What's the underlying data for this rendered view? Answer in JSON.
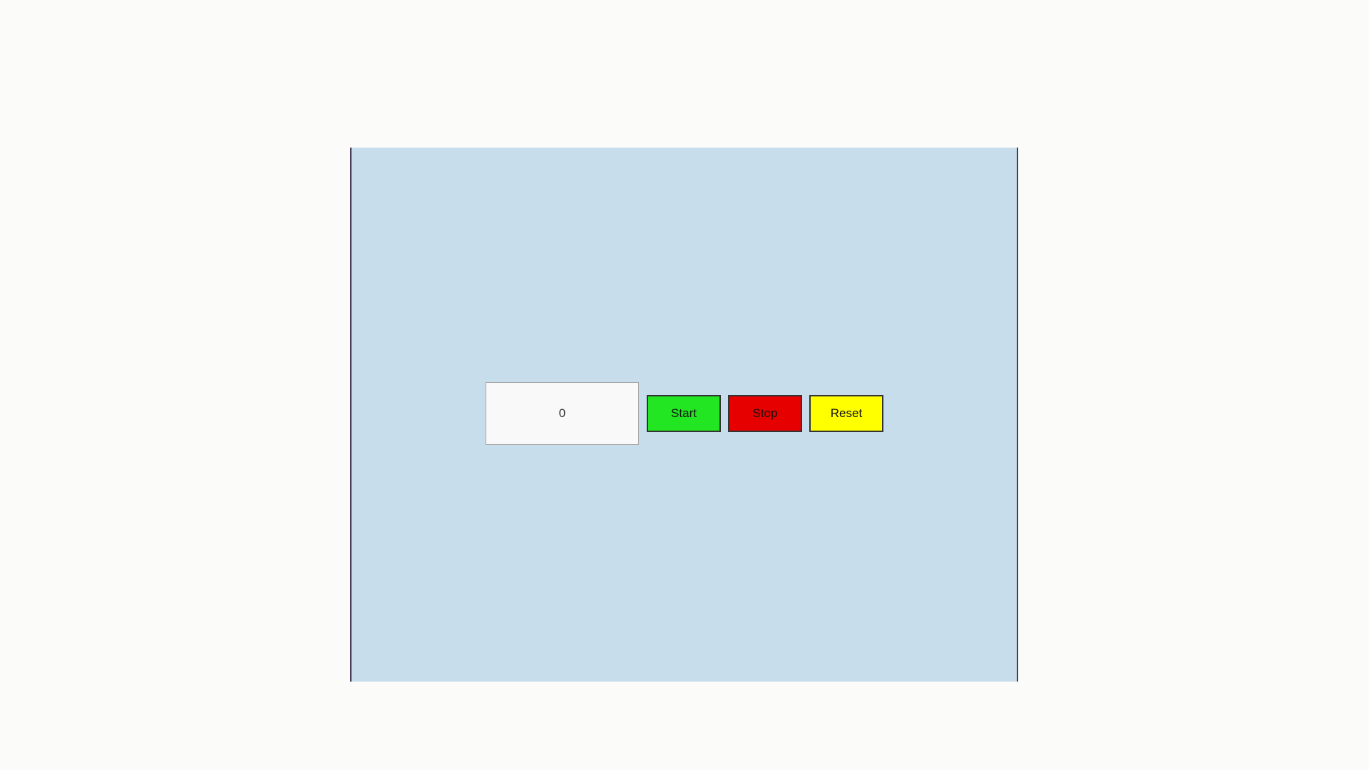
{
  "timer": {
    "display_value": "0"
  },
  "controls": {
    "start_label": "Start",
    "stop_label": "Stop",
    "reset_label": "Reset"
  },
  "colors": {
    "page_background": "#fbfbfa",
    "stage_background": "#c8ddec",
    "stage_border": "#4a3a55",
    "display_background": "#f9f9f9",
    "start": "#22e622",
    "stop": "#e60000",
    "reset": "#ffff00"
  }
}
